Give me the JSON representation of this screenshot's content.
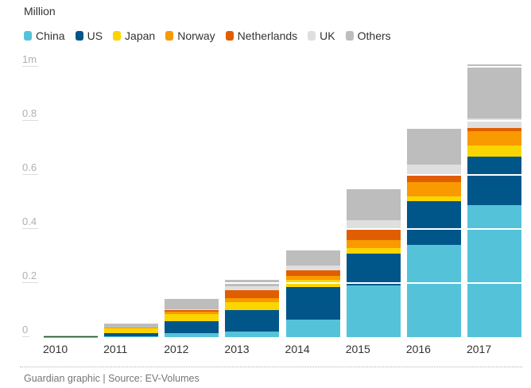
{
  "title": "Million",
  "footer": {
    "source_line": "Guardian graphic | Source: EV-Volumes"
  },
  "chart_data": {
    "type": "bar",
    "stacked": true,
    "title": "Million",
    "unit": "million vehicles",
    "categories": [
      "2010",
      "2011",
      "2012",
      "2013",
      "2014",
      "2015",
      "2016",
      "2017"
    ],
    "series": [
      {
        "name": "China",
        "color": "#54c3da",
        "values": [
          0.001,
          0.004,
          0.015,
          0.021,
          0.065,
          0.191,
          0.342,
          0.489
        ]
      },
      {
        "name": "US",
        "color": "#005689",
        "values": [
          0.002,
          0.012,
          0.044,
          0.08,
          0.121,
          0.118,
          0.162,
          0.18
        ]
      },
      {
        "name": "Japan",
        "color": "#fbd500",
        "values": [
          0.002,
          0.016,
          0.027,
          0.029,
          0.026,
          0.021,
          0.018,
          0.041
        ]
      },
      {
        "name": "Norway",
        "color": "#f89a00",
        "values": [
          0.0,
          0.002,
          0.007,
          0.015,
          0.015,
          0.029,
          0.053,
          0.053
        ]
      },
      {
        "name": "Netherlands",
        "color": "#e05e00",
        "values": [
          0.0,
          0.001,
          0.006,
          0.029,
          0.021,
          0.038,
          0.029,
          0.012
        ]
      },
      {
        "name": "UK",
        "color": "#dfdfdf",
        "values": [
          0.0,
          0.001,
          0.003,
          0.015,
          0.018,
          0.035,
          0.035,
          0.035
        ]
      },
      {
        "name": "Others",
        "color": "#bdbdbd",
        "values": [
          0.001,
          0.014,
          0.038,
          0.024,
          0.056,
          0.115,
          0.133,
          0.2
        ]
      }
    ],
    "y_ticks": [
      "0",
      "0.2",
      "0.4",
      "0.6",
      "0.8",
      "1m"
    ],
    "ylim": [
      0,
      1
    ],
    "ylabel": "Million",
    "xlabel": "",
    "legend_position": "top",
    "gridlines": "white-over-bars"
  }
}
